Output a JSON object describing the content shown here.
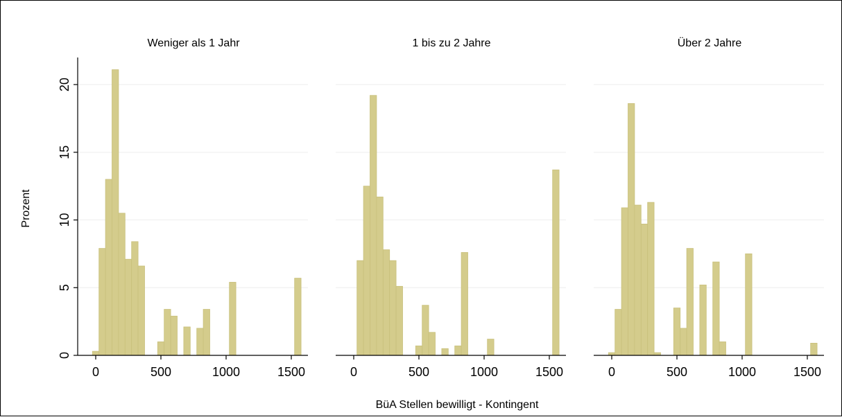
{
  "chart_data": {
    "type": "bar",
    "ylabel": "Prozent",
    "xlabel": "BüA Stellen bewilligt - Kontingent",
    "ylim": [
      0,
      22
    ],
    "yticks": [
      0,
      5,
      10,
      15,
      20
    ],
    "xlim": [
      -100,
      1650
    ],
    "xticks": [
      0,
      500,
      1000,
      1500
    ],
    "grid": true,
    "bin_width": 50,
    "bar_color": "#d4cc8c",
    "bar_edge_color": "#c9c07c",
    "panels": [
      {
        "title": "Weniger als 1 Jahr",
        "bins": [
          {
            "x": 0,
            "value": 0.3
          },
          {
            "x": 50,
            "value": 7.9
          },
          {
            "x": 100,
            "value": 13.0
          },
          {
            "x": 150,
            "value": 21.1
          },
          {
            "x": 200,
            "value": 10.5
          },
          {
            "x": 250,
            "value": 7.1
          },
          {
            "x": 300,
            "value": 8.4
          },
          {
            "x": 350,
            "value": 6.6
          },
          {
            "x": 500,
            "value": 1.0
          },
          {
            "x": 550,
            "value": 3.4
          },
          {
            "x": 600,
            "value": 2.9
          },
          {
            "x": 700,
            "value": 2.1
          },
          {
            "x": 800,
            "value": 2.0
          },
          {
            "x": 850,
            "value": 3.4
          },
          {
            "x": 1050,
            "value": 5.4
          },
          {
            "x": 1550,
            "value": 5.7
          }
        ]
      },
      {
        "title": "1 bis zu 2 Jahre",
        "bins": [
          {
            "x": 50,
            "value": 7.0
          },
          {
            "x": 100,
            "value": 12.5
          },
          {
            "x": 150,
            "value": 19.2
          },
          {
            "x": 200,
            "value": 11.7
          },
          {
            "x": 250,
            "value": 7.8
          },
          {
            "x": 300,
            "value": 7.0
          },
          {
            "x": 350,
            "value": 5.1
          },
          {
            "x": 500,
            "value": 0.7
          },
          {
            "x": 550,
            "value": 3.7
          },
          {
            "x": 600,
            "value": 1.7
          },
          {
            "x": 700,
            "value": 0.5
          },
          {
            "x": 800,
            "value": 0.7
          },
          {
            "x": 850,
            "value": 7.6
          },
          {
            "x": 1050,
            "value": 1.2
          },
          {
            "x": 1550,
            "value": 13.7
          }
        ]
      },
      {
        "title": "Über 2 Jahre",
        "bins": [
          {
            "x": 0,
            "value": 0.2
          },
          {
            "x": 50,
            "value": 3.4
          },
          {
            "x": 100,
            "value": 10.9
          },
          {
            "x": 150,
            "value": 18.6
          },
          {
            "x": 200,
            "value": 11.1
          },
          {
            "x": 250,
            "value": 9.7
          },
          {
            "x": 300,
            "value": 11.3
          },
          {
            "x": 350,
            "value": 0.2
          },
          {
            "x": 500,
            "value": 3.5
          },
          {
            "x": 550,
            "value": 2.0
          },
          {
            "x": 600,
            "value": 7.9
          },
          {
            "x": 700,
            "value": 5.2
          },
          {
            "x": 800,
            "value": 6.9
          },
          {
            "x": 850,
            "value": 1.0
          },
          {
            "x": 1050,
            "value": 7.5
          },
          {
            "x": 1550,
            "value": 0.9
          }
        ]
      }
    ]
  }
}
